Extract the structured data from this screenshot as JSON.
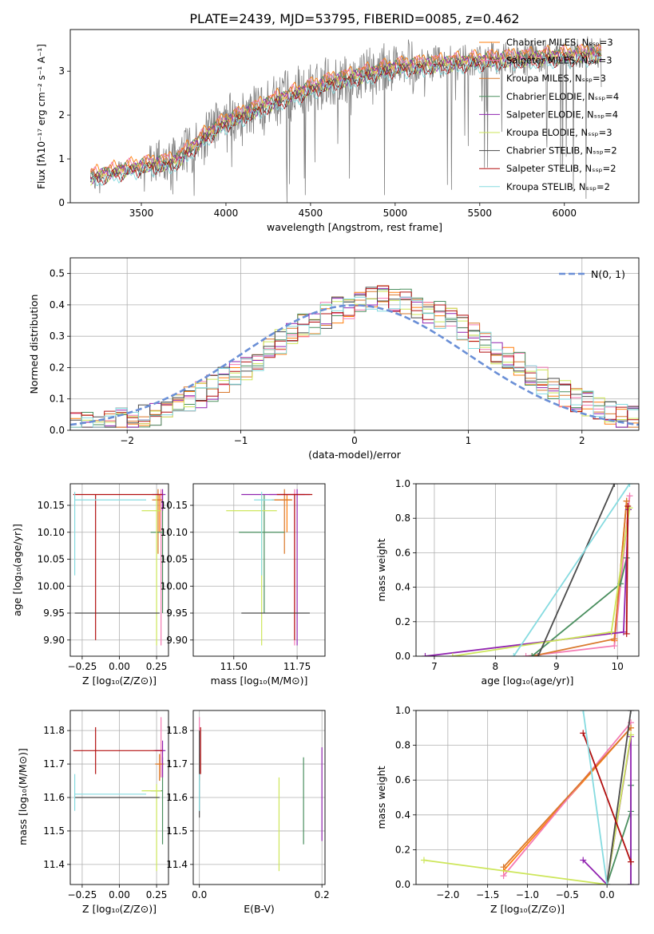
{
  "colors": {
    "Chabrier MILES": "#ff7f0e",
    "Salpeter MILES": "#f47ab3",
    "Kroupa MILES": "#d9782b",
    "Chabrier ELODIE": "#4a8f5f",
    "Salpeter ELODIE": "#9124b0",
    "Kroupa ELODIE": "#cde65a",
    "Chabrier STELIB": "#4b4b4b",
    "Salpeter STELIB": "#b20f0f",
    "Kroupa STELIB": "#86dbe0"
  },
  "chart_data": [
    {
      "id": "spectrum",
      "type": "line",
      "title": "PLATE=2439, MJD=53795, FIBERID=0085, z=0.462",
      "xlabel": "wavelength [Angstrom, rest frame]",
      "ylabel": "Flux [fλ10⁻¹⁷ erg cm⁻² s⁻¹ A⁻¹]",
      "xlim": [
        3080,
        6440
      ],
      "ylim": [
        0,
        3.95
      ],
      "xticks": [
        3500,
        4000,
        4500,
        5000,
        5500,
        6000
      ],
      "yticks": [
        0,
        1,
        2,
        3
      ],
      "grid": false,
      "legend_position": "top-right",
      "legend": [
        "Chabrier MILES, Nₛₛₚ=3",
        "Salpeter MILES, Nₛₛₚ=3",
        "Kroupa MILES, Nₛₛₚ=3",
        "Chabrier ELODIE, Nₛₛₚ=4",
        "Salpeter ELODIE, Nₛₛₚ=4",
        "Kroupa ELODIE, Nₛₛₚ=3",
        "Chabrier STELIB, Nₛₛₚ=2",
        "Salpeter STELIB, Nₛₛₚ=2",
        "Kroupa STELIB, Nₛₛₚ=2"
      ],
      "data_range": [
        3200,
        6220
      ],
      "continuum_anchors": [
        [
          3200,
          0.6
        ],
        [
          3500,
          0.85
        ],
        [
          3700,
          0.95
        ],
        [
          3900,
          1.6
        ],
        [
          4000,
          1.85
        ],
        [
          4300,
          2.35
        ],
        [
          4600,
          2.75
        ],
        [
          5000,
          3.1
        ],
        [
          5500,
          3.25
        ],
        [
          6200,
          3.4
        ]
      ]
    },
    {
      "id": "residuals",
      "type": "line",
      "xlabel": "(data-model)/error",
      "ylabel": "Normed distribution",
      "xlim": [
        -2.5,
        2.5
      ],
      "ylim": [
        0,
        0.55
      ],
      "xticks": [
        -2,
        -1,
        0,
        1,
        2
      ],
      "yticks": [
        0.0,
        0.1,
        0.2,
        0.3,
        0.4,
        0.5
      ],
      "grid": true,
      "legend_position": "top-right",
      "legend": [
        "N(0, 1)"
      ],
      "bin_width": 0.1,
      "gaussian": {
        "mean": 0,
        "sigma": 1
      }
    },
    {
      "id": "age-vs-Z",
      "type": "scatter",
      "xlabel": "Z [log₁₀(Z/Z⊙)]",
      "ylabel": "age  [log₁₀(age/yr)]",
      "xlim": [
        -0.33,
        0.33
      ],
      "ylim": [
        9.87,
        10.19
      ],
      "xticks": [
        -0.25,
        0.0,
        0.25
      ],
      "xticklabels": [
        "−0.25",
        "0.00",
        "0.25"
      ],
      "yticks": [
        9.9,
        9.95,
        10.0,
        10.05,
        10.1,
        10.15
      ],
      "grid": true,
      "points": [
        {
          "model": "Chabrier MILES",
          "x": 0.27,
          "y": 10.16,
          "xerr": [
            0.02,
            0.02
          ],
          "yerr": [
            0.06,
            0.01
          ]
        },
        {
          "model": "Salpeter MILES",
          "x": 0.28,
          "y": 10.17,
          "xerr": [
            0.04,
            0.02
          ],
          "yerr": [
            0.28,
            0.01
          ]
        },
        {
          "model": "Kroupa MILES",
          "x": 0.26,
          "y": 10.16,
          "xerr": [
            0.04,
            0.03
          ],
          "yerr": [
            0.1,
            0.02
          ]
        },
        {
          "model": "Chabrier ELODIE",
          "x": 0.29,
          "y": 10.1,
          "xerr": [
            0.08,
            0.0
          ],
          "yerr": [
            0.15,
            0.07
          ]
        },
        {
          "model": "Salpeter ELODIE",
          "x": 0.29,
          "y": 10.17,
          "xerr": [
            0.07,
            0.02
          ],
          "yerr": [
            0.03,
            0.01
          ]
        },
        {
          "model": "Kroupa ELODIE",
          "x": 0.25,
          "y": 10.14,
          "xerr": [
            0.1,
            0.03
          ],
          "yerr": [
            0.25,
            0.03
          ]
        },
        {
          "model": "Chabrier STELIB",
          "x": 0.0,
          "y": 9.95,
          "xerr": [
            0.3,
            0.27
          ],
          "yerr": [
            0.0,
            0.0
          ]
        },
        {
          "model": "Salpeter STELIB",
          "x": -0.16,
          "y": 10.17,
          "xerr": [
            0.15,
            0.45
          ],
          "yerr": [
            0.27,
            0.0
          ]
        },
        {
          "model": "Kroupa STELIB",
          "x": -0.3,
          "y": 10.16,
          "xerr": [
            0.0,
            0.48
          ],
          "yerr": [
            0.14,
            0.015
          ]
        }
      ]
    },
    {
      "id": "age-vs-mass",
      "type": "scatter",
      "xlabel": "mass [log₁₀(M/M⊙)]",
      "xlim": [
        11.34,
        11.86
      ],
      "ylim": [
        9.87,
        10.19
      ],
      "xticks": [
        11.5,
        11.75
      ],
      "xticklabels": [
        "11.50",
        "11.75"
      ],
      "yticks": [
        9.9,
        9.95,
        10.0,
        10.05,
        10.1,
        10.15
      ],
      "grid": true,
      "points": [
        {
          "model": "Chabrier MILES",
          "x": 11.71,
          "y": 10.16,
          "xerr": [
            0.05,
            0.02
          ],
          "yerr": [
            0.06,
            0.01
          ]
        },
        {
          "model": "Salpeter MILES",
          "x": 11.74,
          "y": 10.17,
          "xerr": [
            0.1,
            0.04
          ],
          "yerr": [
            0.28,
            0.01
          ]
        },
        {
          "model": "Kroupa MILES",
          "x": 11.7,
          "y": 10.16,
          "xerr": [
            0.05,
            0.03
          ],
          "yerr": [
            0.1,
            0.02
          ]
        },
        {
          "model": "Chabrier ELODIE",
          "x": 11.62,
          "y": 10.1,
          "xerr": [
            0.1,
            0.08
          ],
          "yerr": [
            0.15,
            0.07
          ]
        },
        {
          "model": "Salpeter ELODIE",
          "x": 11.75,
          "y": 10.17,
          "xerr": [
            0.22,
            0.05
          ],
          "yerr": [
            0.28,
            0.01
          ]
        },
        {
          "model": "Kroupa ELODIE",
          "x": 11.61,
          "y": 10.14,
          "xerr": [
            0.14,
            0.06
          ],
          "yerr": [
            0.25,
            0.03
          ]
        },
        {
          "model": "Chabrier STELIB",
          "x": 11.6,
          "y": 9.95,
          "xerr": [
            0.07,
            0.2
          ],
          "yerr": [
            0.0,
            0.0
          ]
        },
        {
          "model": "Salpeter STELIB",
          "x": 11.74,
          "y": 10.17,
          "xerr": [
            0.07,
            0.07
          ],
          "yerr": [
            0.27,
            0.0
          ]
        },
        {
          "model": "Kroupa STELIB",
          "x": 11.61,
          "y": 10.16,
          "xerr": [
            0.03,
            0.05
          ],
          "yerr": [
            0.14,
            0.015
          ]
        }
      ]
    },
    {
      "id": "mass-weight-vs-age",
      "type": "line",
      "xlabel": "age  [log₁₀(age/yr)]",
      "ylabel": "mass weight",
      "xlim": [
        6.7,
        10.35
      ],
      "ylim": [
        0,
        1.0
      ],
      "xticks": [
        7,
        8,
        9,
        10
      ],
      "yticks": [
        0.0,
        0.2,
        0.4,
        0.6,
        0.8,
        1.0
      ],
      "grid": true,
      "series": [
        {
          "model": "Chabrier MILES",
          "x": [
            9.95,
            10.15
          ],
          "y": [
            0.09,
            0.9
          ]
        },
        {
          "model": "Salpeter MILES",
          "x": [
            8.5,
            9.95,
            10.2
          ],
          "y": [
            0.0,
            0.06,
            0.93
          ]
        },
        {
          "model": "Kroupa MILES",
          "x": [
            8.6,
            9.95,
            10.15
          ],
          "y": [
            0.0,
            0.1,
            0.9
          ]
        },
        {
          "model": "Chabrier ELODIE",
          "x": [
            8.6,
            10.05,
            10.15
          ],
          "y": [
            0.0,
            0.42,
            0.57
          ]
        },
        {
          "model": "Salpeter ELODIE",
          "x": [
            6.85,
            10.1,
            10.18
          ],
          "y": [
            0.0,
            0.14,
            0.85
          ]
        },
        {
          "model": "Kroupa ELODIE",
          "x": [
            7.3,
            9.9,
            10.2
          ],
          "y": [
            0.0,
            0.14,
            0.86
          ]
        },
        {
          "model": "Chabrier STELIB",
          "x": [
            8.7,
            9.95
          ],
          "y": [
            0.0,
            1.0
          ]
        },
        {
          "model": "Salpeter STELIB",
          "x": [
            10.15,
            10.17
          ],
          "y": [
            0.13,
            0.87
          ]
        },
        {
          "model": "Kroupa STELIB",
          "x": [
            8.3,
            10.2
          ],
          "y": [
            0.0,
            1.0
          ]
        }
      ]
    },
    {
      "id": "mass-vs-Z",
      "type": "scatter",
      "xlabel": "Z [log₁₀(Z/Z⊙)]",
      "ylabel": "mass [log₁₀(M/M⊙)]",
      "xlim": [
        -0.33,
        0.33
      ],
      "ylim": [
        11.34,
        11.86
      ],
      "xticks": [
        -0.25,
        0.0,
        0.25
      ],
      "xticklabels": [
        "−0.25",
        "0.00",
        "0.25"
      ],
      "yticks": [
        11.4,
        11.5,
        11.6,
        11.7,
        11.8
      ],
      "grid": true,
      "points": [
        {
          "model": "Chabrier MILES",
          "x": 0.27,
          "y": 11.7,
          "xerr": [
            0.02,
            0.02
          ],
          "yerr": [
            0.05,
            0.03
          ]
        },
        {
          "model": "Salpeter MILES",
          "x": 0.28,
          "y": 11.74,
          "xerr": [
            0.05,
            0.02
          ],
          "yerr": [
            0.08,
            0.1
          ]
        },
        {
          "model": "Kroupa MILES",
          "x": 0.27,
          "y": 11.7,
          "xerr": [
            0.03,
            0.03
          ],
          "yerr": [
            0.05,
            0.03
          ]
        },
        {
          "model": "Chabrier ELODIE",
          "x": 0.29,
          "y": 11.62,
          "xerr": [
            0.08,
            0.0
          ],
          "yerr": [
            0.16,
            0.1
          ]
        },
        {
          "model": "Salpeter ELODIE",
          "x": 0.29,
          "y": 11.74,
          "xerr": [
            0.05,
            0.02
          ],
          "yerr": [
            0.08,
            0.03
          ]
        },
        {
          "model": "Kroupa ELODIE",
          "x": 0.25,
          "y": 11.62,
          "xerr": [
            0.1,
            0.03
          ],
          "yerr": [
            0.24,
            0.02
          ]
        },
        {
          "model": "Chabrier STELIB",
          "x": 0.0,
          "y": 11.6,
          "xerr": [
            0.3,
            0.27
          ],
          "yerr": [
            0.0,
            0.0
          ]
        },
        {
          "model": "Salpeter STELIB",
          "x": -0.16,
          "y": 11.74,
          "xerr": [
            0.15,
            0.45
          ],
          "yerr": [
            0.07,
            0.07
          ]
        },
        {
          "model": "Kroupa STELIB",
          "x": -0.3,
          "y": 11.61,
          "xerr": [
            0.0,
            0.48
          ],
          "yerr": [
            0.05,
            0.06
          ]
        }
      ]
    },
    {
      "id": "mass-vs-EBV",
      "type": "scatter",
      "xlabel": "E(B-V)",
      "xlim": [
        -0.01,
        0.205
      ],
      "ylim": [
        11.34,
        11.86
      ],
      "xticks": [
        0.0,
        0.2
      ],
      "xticklabels": [
        "0.0",
        "0.2"
      ],
      "yticks": [
        11.4,
        11.5,
        11.6,
        11.7,
        11.8
      ],
      "grid": true,
      "points": [
        {
          "model": "Chabrier MILES",
          "x": 0.0,
          "y": 11.7,
          "xerr": [
            0,
            0
          ],
          "yerr": [
            0.05,
            0.03
          ]
        },
        {
          "model": "Salpeter MILES",
          "x": 0.0,
          "y": 11.74,
          "xerr": [
            0,
            0
          ],
          "yerr": [
            0.08,
            0.1
          ]
        },
        {
          "model": "Chabrier ELODIE",
          "x": 0.17,
          "y": 11.62,
          "xerr": [
            0,
            0
          ],
          "yerr": [
            0.16,
            0.1
          ]
        },
        {
          "model": "Salpeter ELODIE",
          "x": 0.2,
          "y": 11.61,
          "xerr": [
            0,
            0
          ],
          "yerr": [
            0.14,
            0.14
          ]
        },
        {
          "model": "Kroupa ELODIE",
          "x": 0.13,
          "y": 11.52,
          "xerr": [
            0,
            0
          ],
          "yerr": [
            0.14,
            0.14
          ]
        },
        {
          "model": "Chabrier STELIB",
          "x": 0.0,
          "y": 11.6,
          "xerr": [
            0,
            0
          ],
          "yerr": [
            0.06,
            0.2
          ]
        },
        {
          "model": "Salpeter STELIB",
          "x": 0.002,
          "y": 11.74,
          "xerr": [
            0,
            0
          ],
          "yerr": [
            0.07,
            0.07
          ]
        },
        {
          "model": "Kroupa STELIB",
          "x": 0.0,
          "y": 11.61,
          "xerr": [
            0,
            0
          ],
          "yerr": [
            0.05,
            0.06
          ]
        }
      ]
    },
    {
      "id": "mass-weight-vs-Z",
      "type": "line",
      "xlabel": "Z [log₁₀(Z/Z⊙)]",
      "ylabel": "mass weight",
      "xlim": [
        -2.4,
        0.4
      ],
      "ylim": [
        0,
        1.0
      ],
      "xticks": [
        -2.0,
        -1.5,
        -1.0,
        -0.5,
        0.0
      ],
      "xticklabels": [
        "−2.0",
        "−1.5",
        "−1.0",
        "−0.5",
        "0.0"
      ],
      "yticks": [
        0.0,
        0.2,
        0.4,
        0.6,
        0.8,
        1.0
      ],
      "grid": true,
      "series": [
        {
          "model": "Chabrier MILES",
          "x": [
            -1.3,
            0.3
          ],
          "y": [
            0.08,
            0.9
          ]
        },
        {
          "model": "Salpeter MILES",
          "x": [
            -1.3,
            0.3
          ],
          "y": [
            0.05,
            0.93
          ]
        },
        {
          "model": "Kroupa MILES",
          "x": [
            -1.3,
            0.3
          ],
          "y": [
            0.1,
            0.9
          ]
        },
        {
          "model": "Chabrier ELODIE",
          "x": [
            0.0,
            0.3,
            0.3,
            0.3
          ],
          "y": [
            0.0,
            0.42,
            0.57,
            0.0
          ]
        },
        {
          "model": "Salpeter ELODIE",
          "x": [
            -0.3,
            0.0,
            0.3,
            0.3
          ],
          "y": [
            0.14,
            0.0,
            0.85,
            0.0
          ]
        },
        {
          "model": "Kroupa ELODIE",
          "x": [
            -2.3,
            0.0,
            0.3
          ],
          "y": [
            0.14,
            0.0,
            0.86
          ]
        },
        {
          "model": "Chabrier STELIB",
          "x": [
            0.0,
            0.3
          ],
          "y": [
            0.0,
            1.0
          ]
        },
        {
          "model": "Salpeter STELIB",
          "x": [
            -0.3,
            0.3
          ],
          "y": [
            0.87,
            0.13
          ]
        },
        {
          "model": "Kroupa STELIB",
          "x": [
            -0.3,
            0.0
          ],
          "y": [
            1.0,
            0.0
          ]
        }
      ]
    }
  ]
}
